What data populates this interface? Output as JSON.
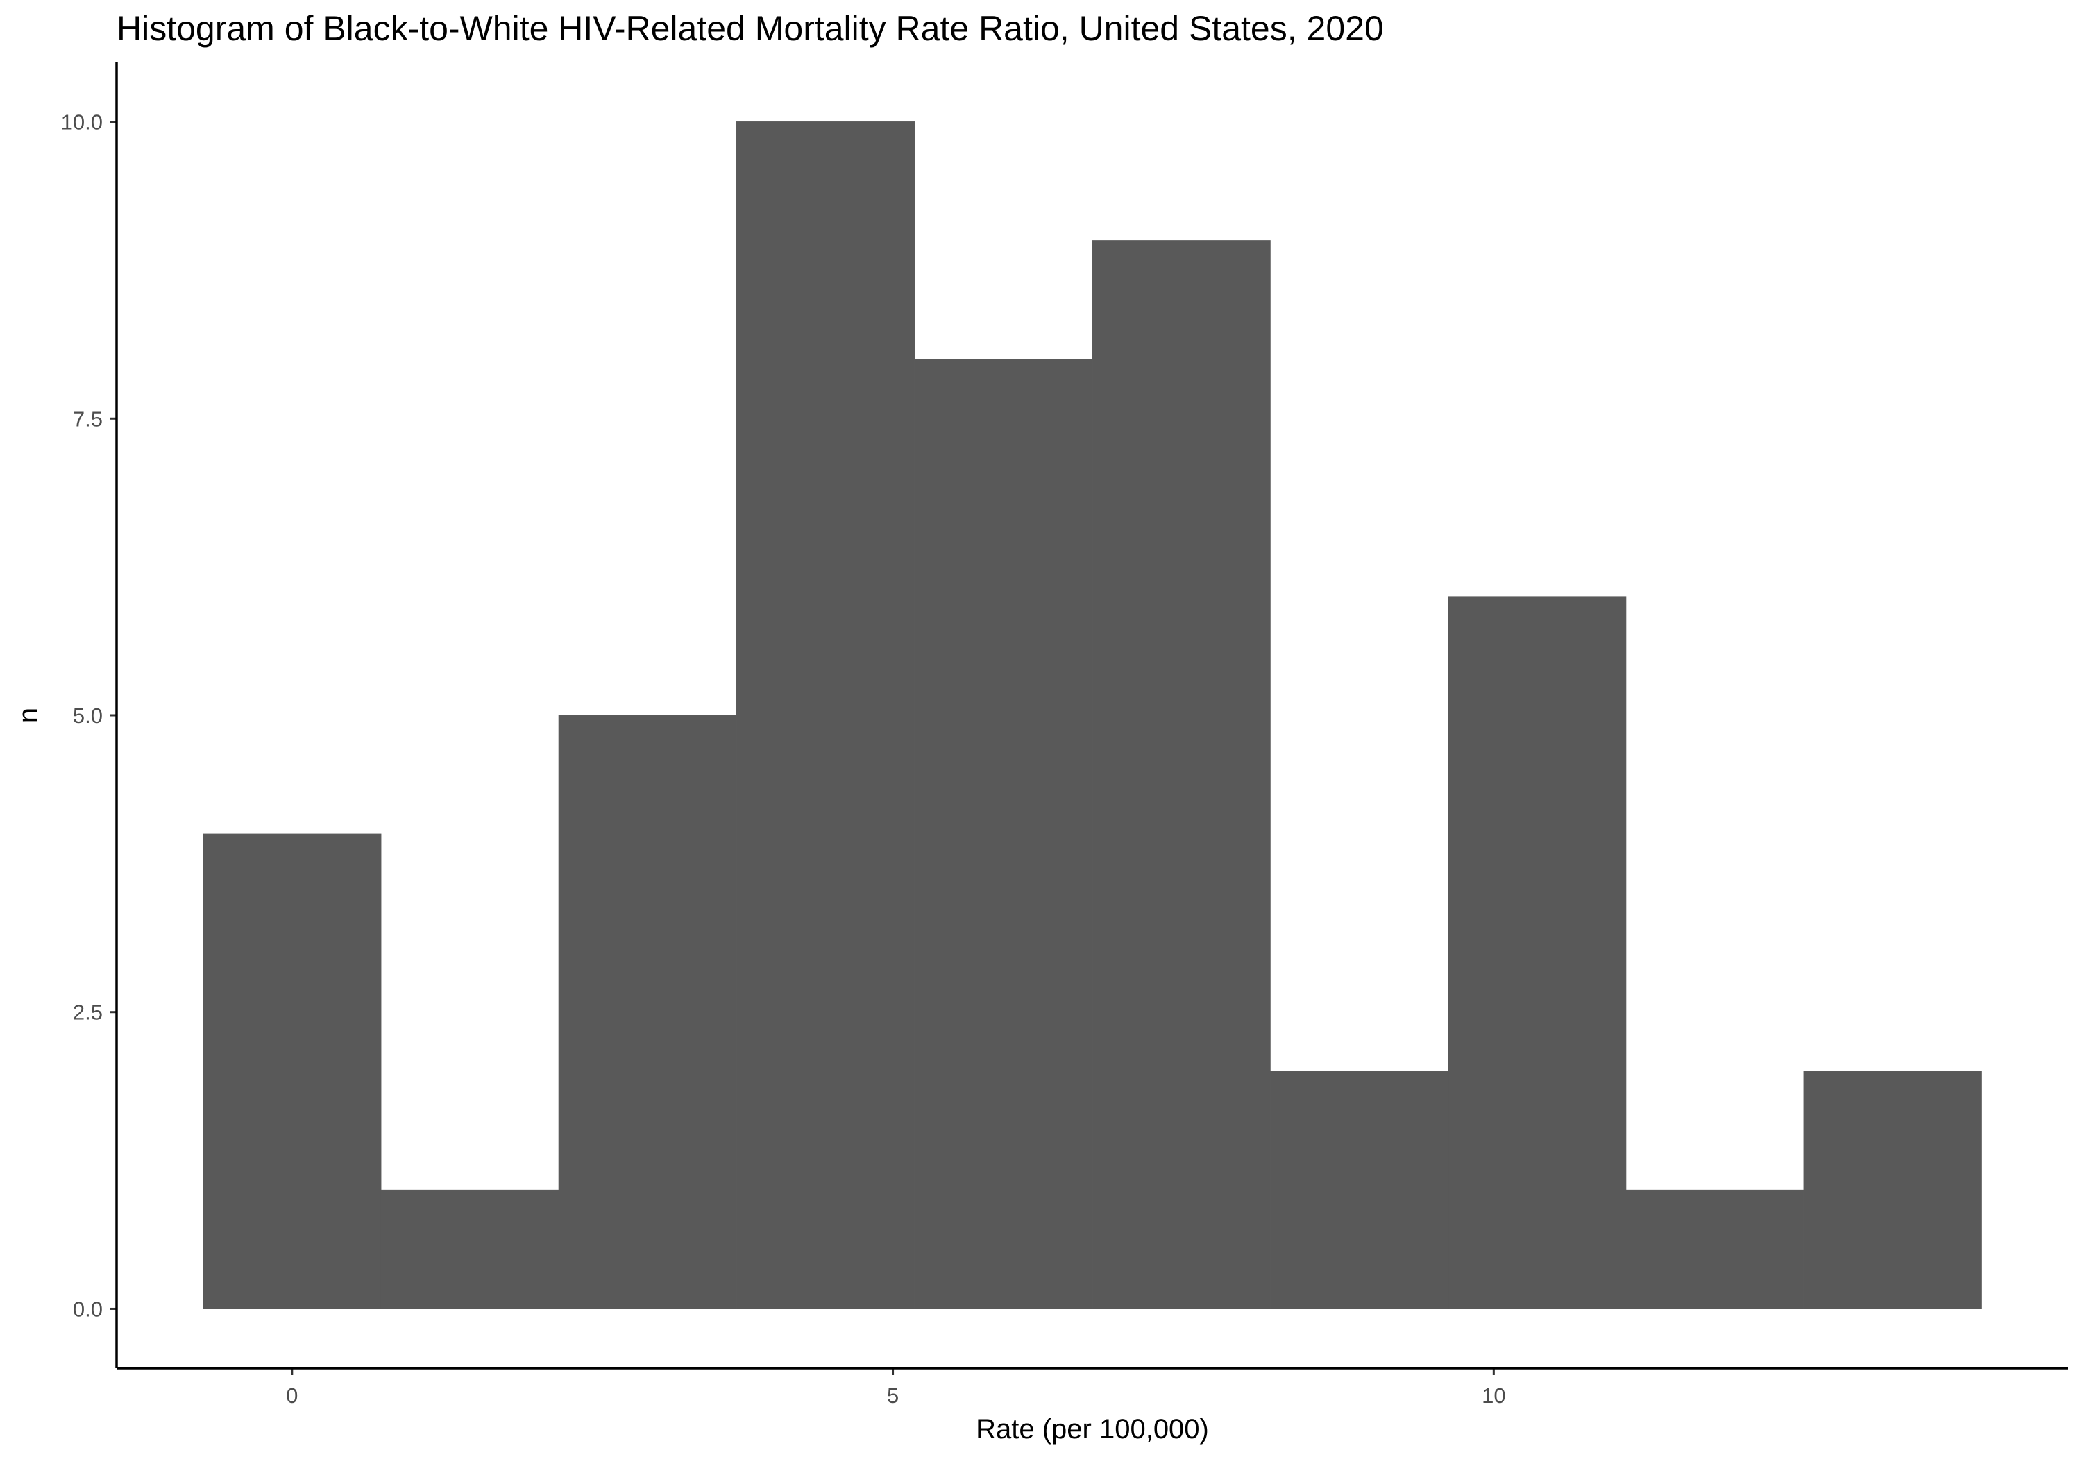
{
  "chart_data": {
    "type": "bar",
    "title": "Histogram of Black-to-White HIV-Related Mortality Rate Ratio, United States, 2020",
    "xlabel": "Rate (per 100,000)",
    "ylabel": "n",
    "bin_width": 1.48,
    "bins": [
      {
        "x_start": -0.74,
        "x_end": 0.74,
        "count": 4
      },
      {
        "x_start": 0.74,
        "x_end": 2.22,
        "count": 1
      },
      {
        "x_start": 2.22,
        "x_end": 3.7,
        "count": 5
      },
      {
        "x_start": 3.7,
        "x_end": 5.18,
        "count": 10
      },
      {
        "x_start": 5.18,
        "x_end": 6.66,
        "count": 8
      },
      {
        "x_start": 6.66,
        "x_end": 8.14,
        "count": 9
      },
      {
        "x_start": 8.14,
        "x_end": 9.62,
        "count": 2
      },
      {
        "x_start": 9.62,
        "x_end": 11.1,
        "count": 6
      },
      {
        "x_start": 11.1,
        "x_end": 12.58,
        "count": 1
      },
      {
        "x_start": 12.58,
        "x_end": 14.06,
        "count": 2
      }
    ],
    "xlim": [
      -1.46,
      14.78
    ],
    "ylim": [
      -0.5,
      10.5
    ],
    "x_ticks": [
      0,
      5,
      10
    ],
    "x_tick_labels": [
      "0",
      "5",
      "10"
    ],
    "y_ticks": [
      0,
      2.5,
      5,
      7.5,
      10
    ],
    "y_tick_labels": [
      "0.0",
      "2.5",
      "5.0",
      "7.5",
      "10.0"
    ],
    "grid": false,
    "legend": "none",
    "colors": {
      "bar_fill": "#595959",
      "axis": "#000000",
      "tick_label": "#4d4d4d",
      "background": "#ffffff"
    }
  }
}
